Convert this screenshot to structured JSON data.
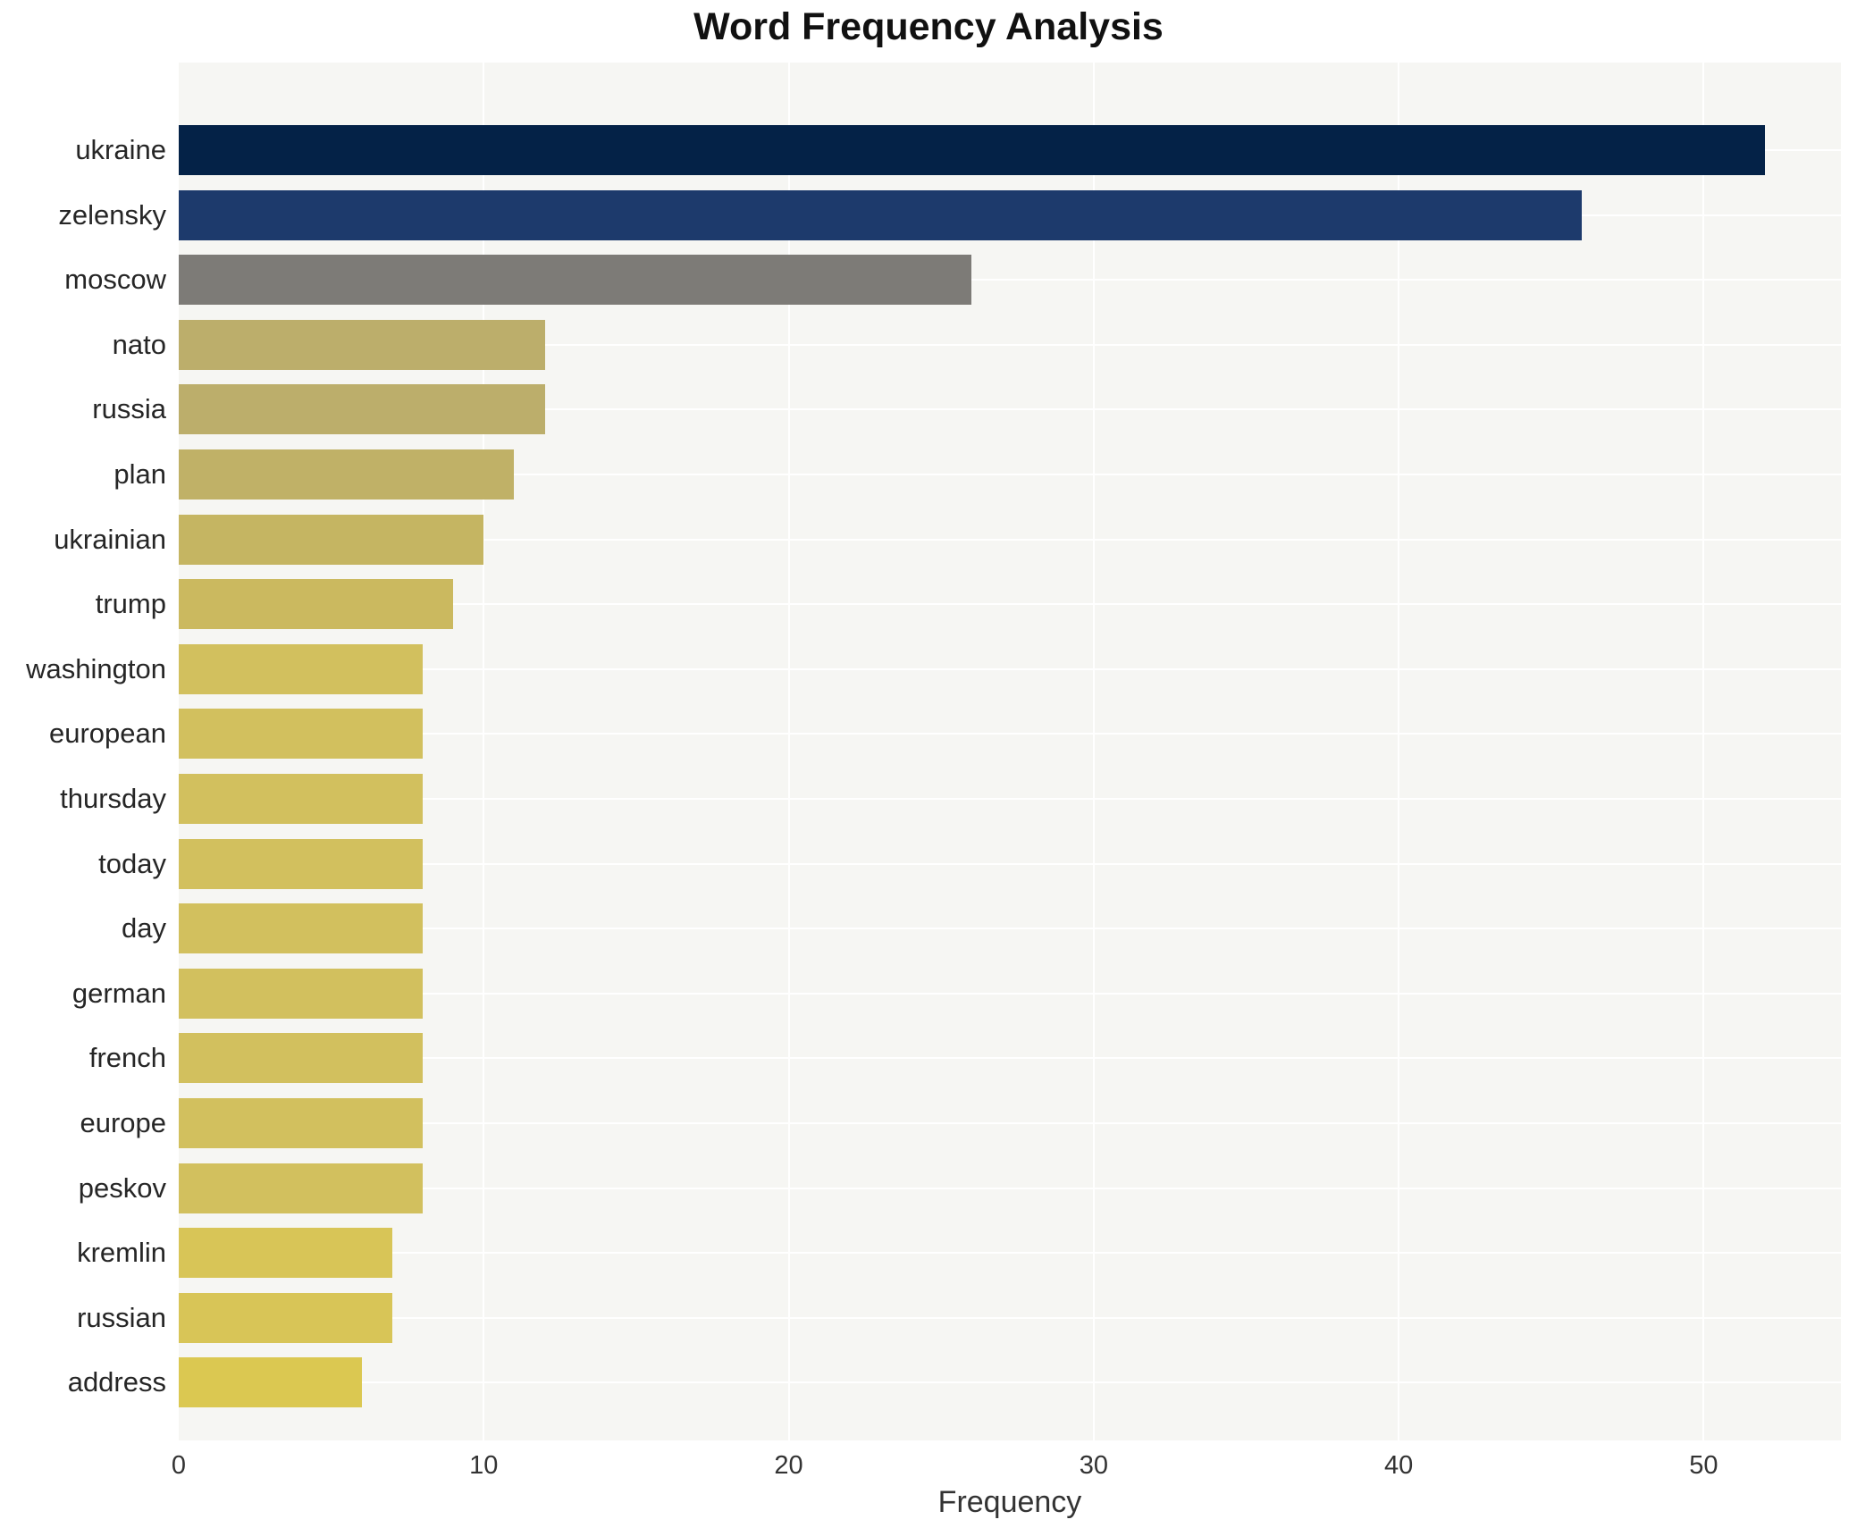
{
  "chart_data": {
    "type": "bar",
    "orientation": "horizontal",
    "title": "Word Frequency Analysis",
    "xlabel": "Frequency",
    "ylabel": "",
    "xlim": [
      0,
      54.5
    ],
    "xticks": [
      0,
      10,
      20,
      30,
      40,
      50
    ],
    "grid": true,
    "plot_background": "#f6f6f3",
    "gridline_color": "#ffffff",
    "categories": [
      "ukraine",
      "zelensky",
      "moscow",
      "nato",
      "russia",
      "plan",
      "ukrainian",
      "trump",
      "washington",
      "european",
      "thursday",
      "today",
      "day",
      "german",
      "french",
      "europe",
      "peskov",
      "kremlin",
      "russian",
      "address"
    ],
    "values": [
      52,
      46,
      26,
      12,
      12,
      11,
      10,
      9,
      8,
      8,
      8,
      8,
      8,
      8,
      8,
      8,
      8,
      7,
      7,
      6
    ],
    "bar_colors": [
      "#042247",
      "#1d3a6c",
      "#7d7b77",
      "#bcae6b",
      "#bcae6b",
      "#c0b167",
      "#c5b562",
      "#cbb95f",
      "#d2c05e",
      "#d2c05e",
      "#d2c05e",
      "#d2c05e",
      "#d2c05e",
      "#d2c05e",
      "#d2c05e",
      "#d2c05e",
      "#d2c05e",
      "#d8c557",
      "#d8c557",
      "#dbc851"
    ]
  }
}
